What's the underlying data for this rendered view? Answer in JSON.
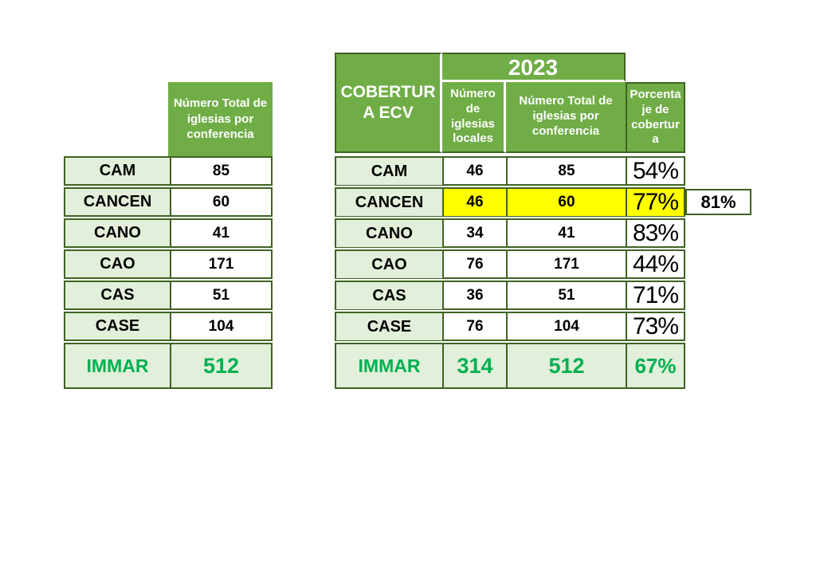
{
  "colors": {
    "header_green": "#70AD47",
    "light_green": "#E2EFDA",
    "border_green": "#3f6322",
    "accent_green": "#00B050",
    "highlight_yellow": "#FFFF00"
  },
  "left_table": {
    "header": "Número Total de iglesias por conferencia",
    "rows": [
      {
        "label": "CAM",
        "total": "85"
      },
      {
        "label": "CANCEN",
        "total": "60"
      },
      {
        "label": "CANO",
        "total": "41"
      },
      {
        "label": "CAO",
        "total": "171"
      },
      {
        "label": "CAS",
        "total": "51"
      },
      {
        "label": "CASE",
        "total": "104"
      }
    ],
    "total_row": {
      "label": "IMMAR",
      "total": "512"
    }
  },
  "right_table": {
    "title": "COBERTURA ECV",
    "year": "2023",
    "columns": {
      "locales": "Número de iglesias locales",
      "total": "Número Total de iglesias por conferencia",
      "pct": "Porcentaje de cobertura"
    },
    "rows": [
      {
        "label": "CAM",
        "locales": "46",
        "total": "85",
        "pct": "54%"
      },
      {
        "label": "CANCEN",
        "locales": "46",
        "total": "60",
        "pct": "77%",
        "note": "81%"
      },
      {
        "label": "CANO",
        "locales": "34",
        "total": "41",
        "pct": "83%"
      },
      {
        "label": "CAO",
        "locales": "76",
        "total": "171",
        "pct": "44%"
      },
      {
        "label": "CAS",
        "locales": "36",
        "total": "51",
        "pct": "71%"
      },
      {
        "label": "CASE",
        "locales": "76",
        "total": "104",
        "pct": "73%"
      }
    ],
    "total_row": {
      "label": "IMMAR",
      "locales": "314",
      "total": "512",
      "pct": "67%"
    }
  }
}
